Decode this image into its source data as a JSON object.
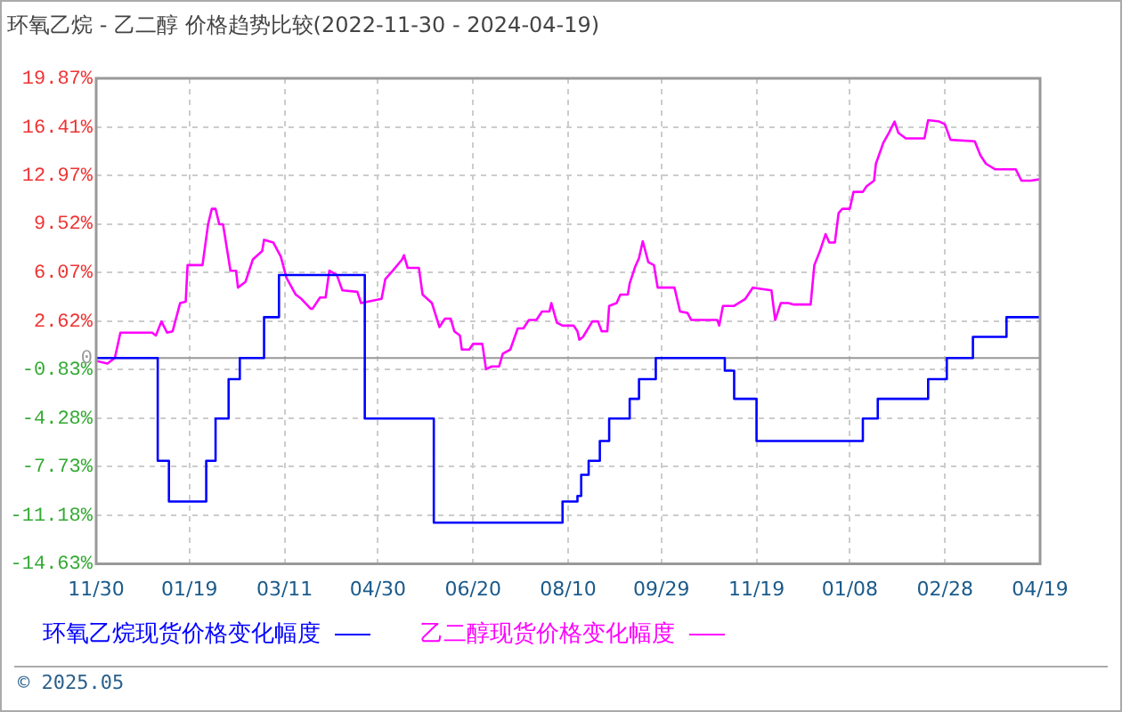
{
  "chart_data": {
    "type": "line",
    "title": "环氧乙烷 - 乙二醇 价格趋势比较(2022-11-30 - 2024-04-19)",
    "series": [
      {
        "name": "环氧乙烷现货价格变化幅度",
        "type": "step",
        "color": "#0000ff",
        "x": [
          "2022-11-30",
          "2023-01-02",
          "2023-01-08",
          "2023-01-28",
          "2023-02-02",
          "2023-02-09",
          "2023-02-15",
          "2023-02-28",
          "2023-03-08",
          "2023-04-23",
          "2023-05-30",
          "2023-08-07",
          "2023-08-15",
          "2023-08-17",
          "2023-08-21",
          "2023-08-27",
          "2023-09-01",
          "2023-09-12",
          "2023-09-17",
          "2023-09-26",
          "2023-11-02",
          "2023-11-07",
          "2023-11-19",
          "2024-01-15",
          "2024-01-23",
          "2024-02-19",
          "2024-02-29",
          "2024-03-14",
          "2024-04-01",
          "2024-04-19"
        ],
        "values": [
          0,
          -7.3,
          -10.2,
          -7.3,
          -4.3,
          -1.5,
          0,
          2.9,
          5.9,
          -4.3,
          -11.7,
          -10.2,
          -9.8,
          -8.3,
          -7.3,
          -5.9,
          -4.3,
          -2.9,
          -1.5,
          0,
          -0.9,
          -2.9,
          -5.9,
          -4.3,
          -2.9,
          -1.5,
          0,
          1.5,
          2.9,
          2.9
        ]
      },
      {
        "name": "乙二醇现货价格变化幅度",
        "color": "#ff00ff",
        "x": [
          "2022-11-30",
          "2022-12-06",
          "2022-12-10",
          "2022-12-13",
          "2022-12-30",
          "2023-01-01",
          "2023-01-04",
          "2023-01-07",
          "2023-01-10",
          "2023-01-14",
          "2023-01-17",
          "2023-01-18",
          "2023-01-26",
          "2023-01-29",
          "2023-01-31",
          "2023-02-02",
          "2023-02-04",
          "2023-02-06",
          "2023-02-10",
          "2023-02-13",
          "2023-02-14",
          "2023-02-18",
          "2023-02-22",
          "2023-02-27",
          "2023-02-28",
          "2023-03-05",
          "2023-03-09",
          "2023-03-12",
          "2023-03-17",
          "2023-03-20",
          "2023-03-25",
          "2023-03-26",
          "2023-03-30",
          "2023-04-02",
          "2023-04-04",
          "2023-04-08",
          "2023-04-11",
          "2023-04-19",
          "2023-04-21",
          "2023-05-02",
          "2023-05-04",
          "2023-05-08",
          "2023-05-13",
          "2023-05-14",
          "2023-05-16",
          "2023-05-22",
          "2023-05-24",
          "2023-05-29",
          "2023-06-02",
          "2023-06-05",
          "2023-06-08",
          "2023-06-10",
          "2023-06-13",
          "2023-06-14",
          "2023-06-18",
          "2023-06-20",
          "2023-06-25",
          "2023-06-27",
          "2023-06-30",
          "2023-07-04",
          "2023-07-06",
          "2023-07-10",
          "2023-07-14",
          "2023-07-17",
          "2023-07-20",
          "2023-07-24",
          "2023-07-27",
          "2023-07-31",
          "2023-08-01",
          "2023-08-04",
          "2023-08-07",
          "2023-08-13",
          "2023-08-15",
          "2023-08-16",
          "2023-08-18",
          "2023-08-23",
          "2023-08-26",
          "2023-08-28",
          "2023-08-31",
          "2023-09-01",
          "2023-09-05",
          "2023-09-07",
          "2023-09-11",
          "2023-09-12",
          "2023-09-15",
          "2023-09-17",
          "2023-09-19",
          "2023-09-22",
          "2023-09-25",
          "2023-09-27",
          "2023-10-06",
          "2023-10-09",
          "2023-10-13",
          "2023-10-15",
          "2023-10-29",
          "2023-10-30",
          "2023-11-01",
          "2023-11-07",
          "2023-11-13",
          "2023-11-17",
          "2023-11-27",
          "2023-11-29",
          "2023-12-02",
          "2023-12-06",
          "2023-12-09",
          "2023-12-18",
          "2023-12-20",
          "2023-12-23",
          "2023-12-26",
          "2023-12-28",
          "2023-12-31",
          "2024-01-02",
          "2024-01-04",
          "2024-01-08",
          "2024-01-10",
          "2024-01-15",
          "2024-01-17",
          "2024-01-21",
          "2024-01-22",
          "2024-01-26",
          "2024-01-29",
          "2024-02-01",
          "2024-02-03",
          "2024-02-07",
          "2024-02-17",
          "2024-02-19",
          "2024-02-25",
          "2024-02-28",
          "2024-03-02",
          "2024-03-15",
          "2024-03-18",
          "2024-03-21",
          "2024-03-26",
          "2024-04-06",
          "2024-04-09",
          "2024-04-14",
          "2024-04-19"
        ],
        "values": [
          -0.2,
          -0.4,
          0,
          1.8,
          1.8,
          1.6,
          2.6,
          1.8,
          1.9,
          3.9,
          4.0,
          6.6,
          6.6,
          9.5,
          10.6,
          10.6,
          9.5,
          9.5,
          6.2,
          6.2,
          5.0,
          5.4,
          7.0,
          7.6,
          8.4,
          8.2,
          7.2,
          5.7,
          4.5,
          4.2,
          3.5,
          3.5,
          4.3,
          4.3,
          6.2,
          5.9,
          4.8,
          4.7,
          3.9,
          4.2,
          5.6,
          6.2,
          7.0,
          7.3,
          6.4,
          6.4,
          4.5,
          3.9,
          2.2,
          2.8,
          2.8,
          1.9,
          1.6,
          0.6,
          0.6,
          1.0,
          1.0,
          -0.8,
          -0.6,
          -0.6,
          0.3,
          0.6,
          2.1,
          2.1,
          2.7,
          2.7,
          3.3,
          3.3,
          3.9,
          2.5,
          2.3,
          2.3,
          1.9,
          1.3,
          1.5,
          2.6,
          2.6,
          1.9,
          1.9,
          3.7,
          3.9,
          4.5,
          4.5,
          5.3,
          6.5,
          7.1,
          8.3,
          6.8,
          6.6,
          5.0,
          5.0,
          3.3,
          3.2,
          2.7,
          2.7,
          2.3,
          3.7,
          3.7,
          4.2,
          5.0,
          4.8,
          2.7,
          3.9,
          3.9,
          3.8,
          3.8,
          6.6,
          7.6,
          8.8,
          8.2,
          8.2,
          10.3,
          10.6,
          10.6,
          11.8,
          11.8,
          12.2,
          12.6,
          13.8,
          15.3,
          16.0,
          16.8,
          16.0,
          15.6,
          15.6,
          16.9,
          16.8,
          16.6,
          15.5,
          15.4,
          14.4,
          13.8,
          13.4,
          13.4,
          12.6,
          12.6,
          12.7
        ]
      }
    ],
    "xlim": [
      "2022-11-30",
      "2024-04-19"
    ],
    "xticks": [
      {
        "value": "2022-11-30",
        "label": "11/30"
      },
      {
        "value": "2023-01-19",
        "label": "01/19"
      },
      {
        "value": "2023-03-11",
        "label": "03/11"
      },
      {
        "value": "2023-04-30",
        "label": "04/30"
      },
      {
        "value": "2023-06-20",
        "label": "06/20"
      },
      {
        "value": "2023-08-10",
        "label": "08/10"
      },
      {
        "value": "2023-09-29",
        "label": "09/29"
      },
      {
        "value": "2023-11-19",
        "label": "11/19"
      },
      {
        "value": "2024-01-08",
        "label": "01/08"
      },
      {
        "value": "2024-02-28",
        "label": "02/28"
      },
      {
        "value": "2024-04-19",
        "label": "04/19"
      }
    ],
    "ylim": [
      -14.63,
      19.87
    ],
    "yticks": [
      {
        "value": -14.63,
        "label": "-14.63%"
      },
      {
        "value": -11.18,
        "label": "-11.18%"
      },
      {
        "value": -7.73,
        "label": "-7.73%"
      },
      {
        "value": -4.28,
        "label": "-4.28%"
      },
      {
        "value": -0.83,
        "label": "-0.83%"
      },
      0,
      {
        "value": 2.62,
        "label": "2.62%"
      },
      {
        "value": 6.07,
        "label": "6.07%"
      },
      {
        "value": 9.52,
        "label": "9.52%"
      },
      {
        "value": 12.97,
        "label": "12.97%"
      },
      {
        "value": 16.41,
        "label": "16.41%"
      },
      {
        "value": 19.87,
        "label": "19.87%"
      }
    ],
    "ref_lines": [
      {
        "axis": "y",
        "value": 0,
        "color": "#999999"
      }
    ],
    "grid": true,
    "legend": "bottom",
    "annotations": [
      "© 2025.05"
    ]
  }
}
